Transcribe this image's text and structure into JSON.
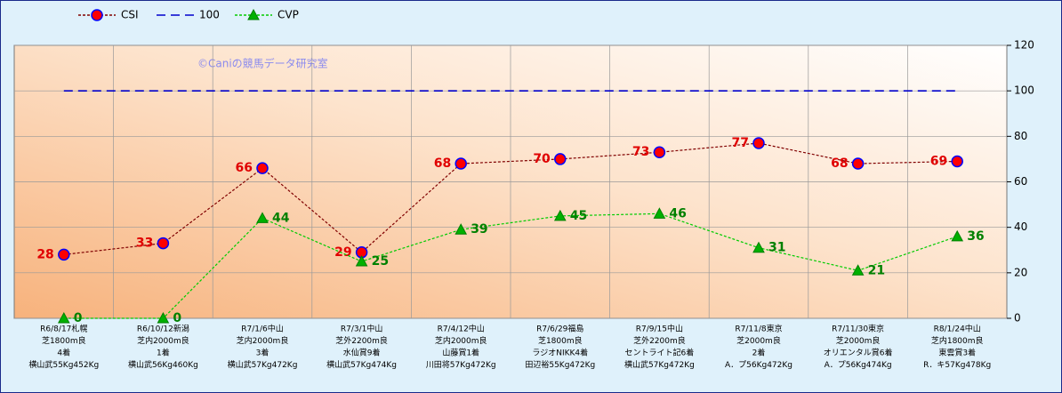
{
  "chart_data": {
    "type": "line",
    "annotation": "©Caniの競馬データ研究室",
    "categories": [
      [
        "R6/8/17札幌",
        "芝1800m良",
        "4着",
        "横山武55Kg452Kg"
      ],
      [
        "R6/10/12新潟",
        "芝内2000m良",
        "1着",
        "横山武56Kg460Kg"
      ],
      [
        "R7/1/6中山",
        "芝内2000m良",
        "3着",
        "横山武57Kg472Kg"
      ],
      [
        "R7/3/1中山",
        "芝外2200m良",
        "水仙賞9着",
        "横山武57Kg474Kg"
      ],
      [
        "R7/4/12中山",
        "芝内2000m良",
        "山藤賞1着",
        "川田将57Kg472Kg"
      ],
      [
        "R7/6/29福島",
        "芝1800m良",
        "ラジオNIKK4着",
        "田辺裕55Kg472Kg"
      ],
      [
        "R7/9/15中山",
        "芝外2200m良",
        "セントライト記6着",
        "横山武57Kg472Kg"
      ],
      [
        "R7/11/8東京",
        "芝2000m良",
        "2着",
        "A．プ56Kg472Kg"
      ],
      [
        "R7/11/30東京",
        "芝2000m良",
        "オリエンタル賞6着",
        "A．プ56Kg474Kg"
      ],
      [
        "R8/1/24中山",
        "芝内1800m良",
        "東雲賞3着",
        "R．キ57Kg478Kg"
      ]
    ],
    "series": [
      {
        "name": "CSI",
        "color": "#800000",
        "marker": "circle",
        "marker_color": "#ff0000",
        "marker_edge": "#0000ff",
        "label_color": "#e00000",
        "label_side": "left",
        "values": [
          28,
          33,
          66,
          29,
          68,
          70,
          73,
          77,
          68,
          69
        ]
      },
      {
        "name": "100",
        "color": "#0000cc",
        "marker": "none",
        "values": [
          100,
          100,
          100,
          100,
          100,
          100,
          100,
          100,
          100,
          100
        ]
      },
      {
        "name": "CVP",
        "color": "#00cc00",
        "marker": "triangle",
        "marker_color": "#00b000",
        "marker_edge": "#008000",
        "label_color": "#008000",
        "label_side": "right",
        "values": [
          0,
          0,
          44,
          25,
          39,
          45,
          46,
          31,
          21,
          36
        ]
      }
    ],
    "ylim": [
      0,
      120
    ],
    "yticks": [
      0,
      20,
      40,
      60,
      80,
      100,
      120
    ],
    "grid": true
  }
}
